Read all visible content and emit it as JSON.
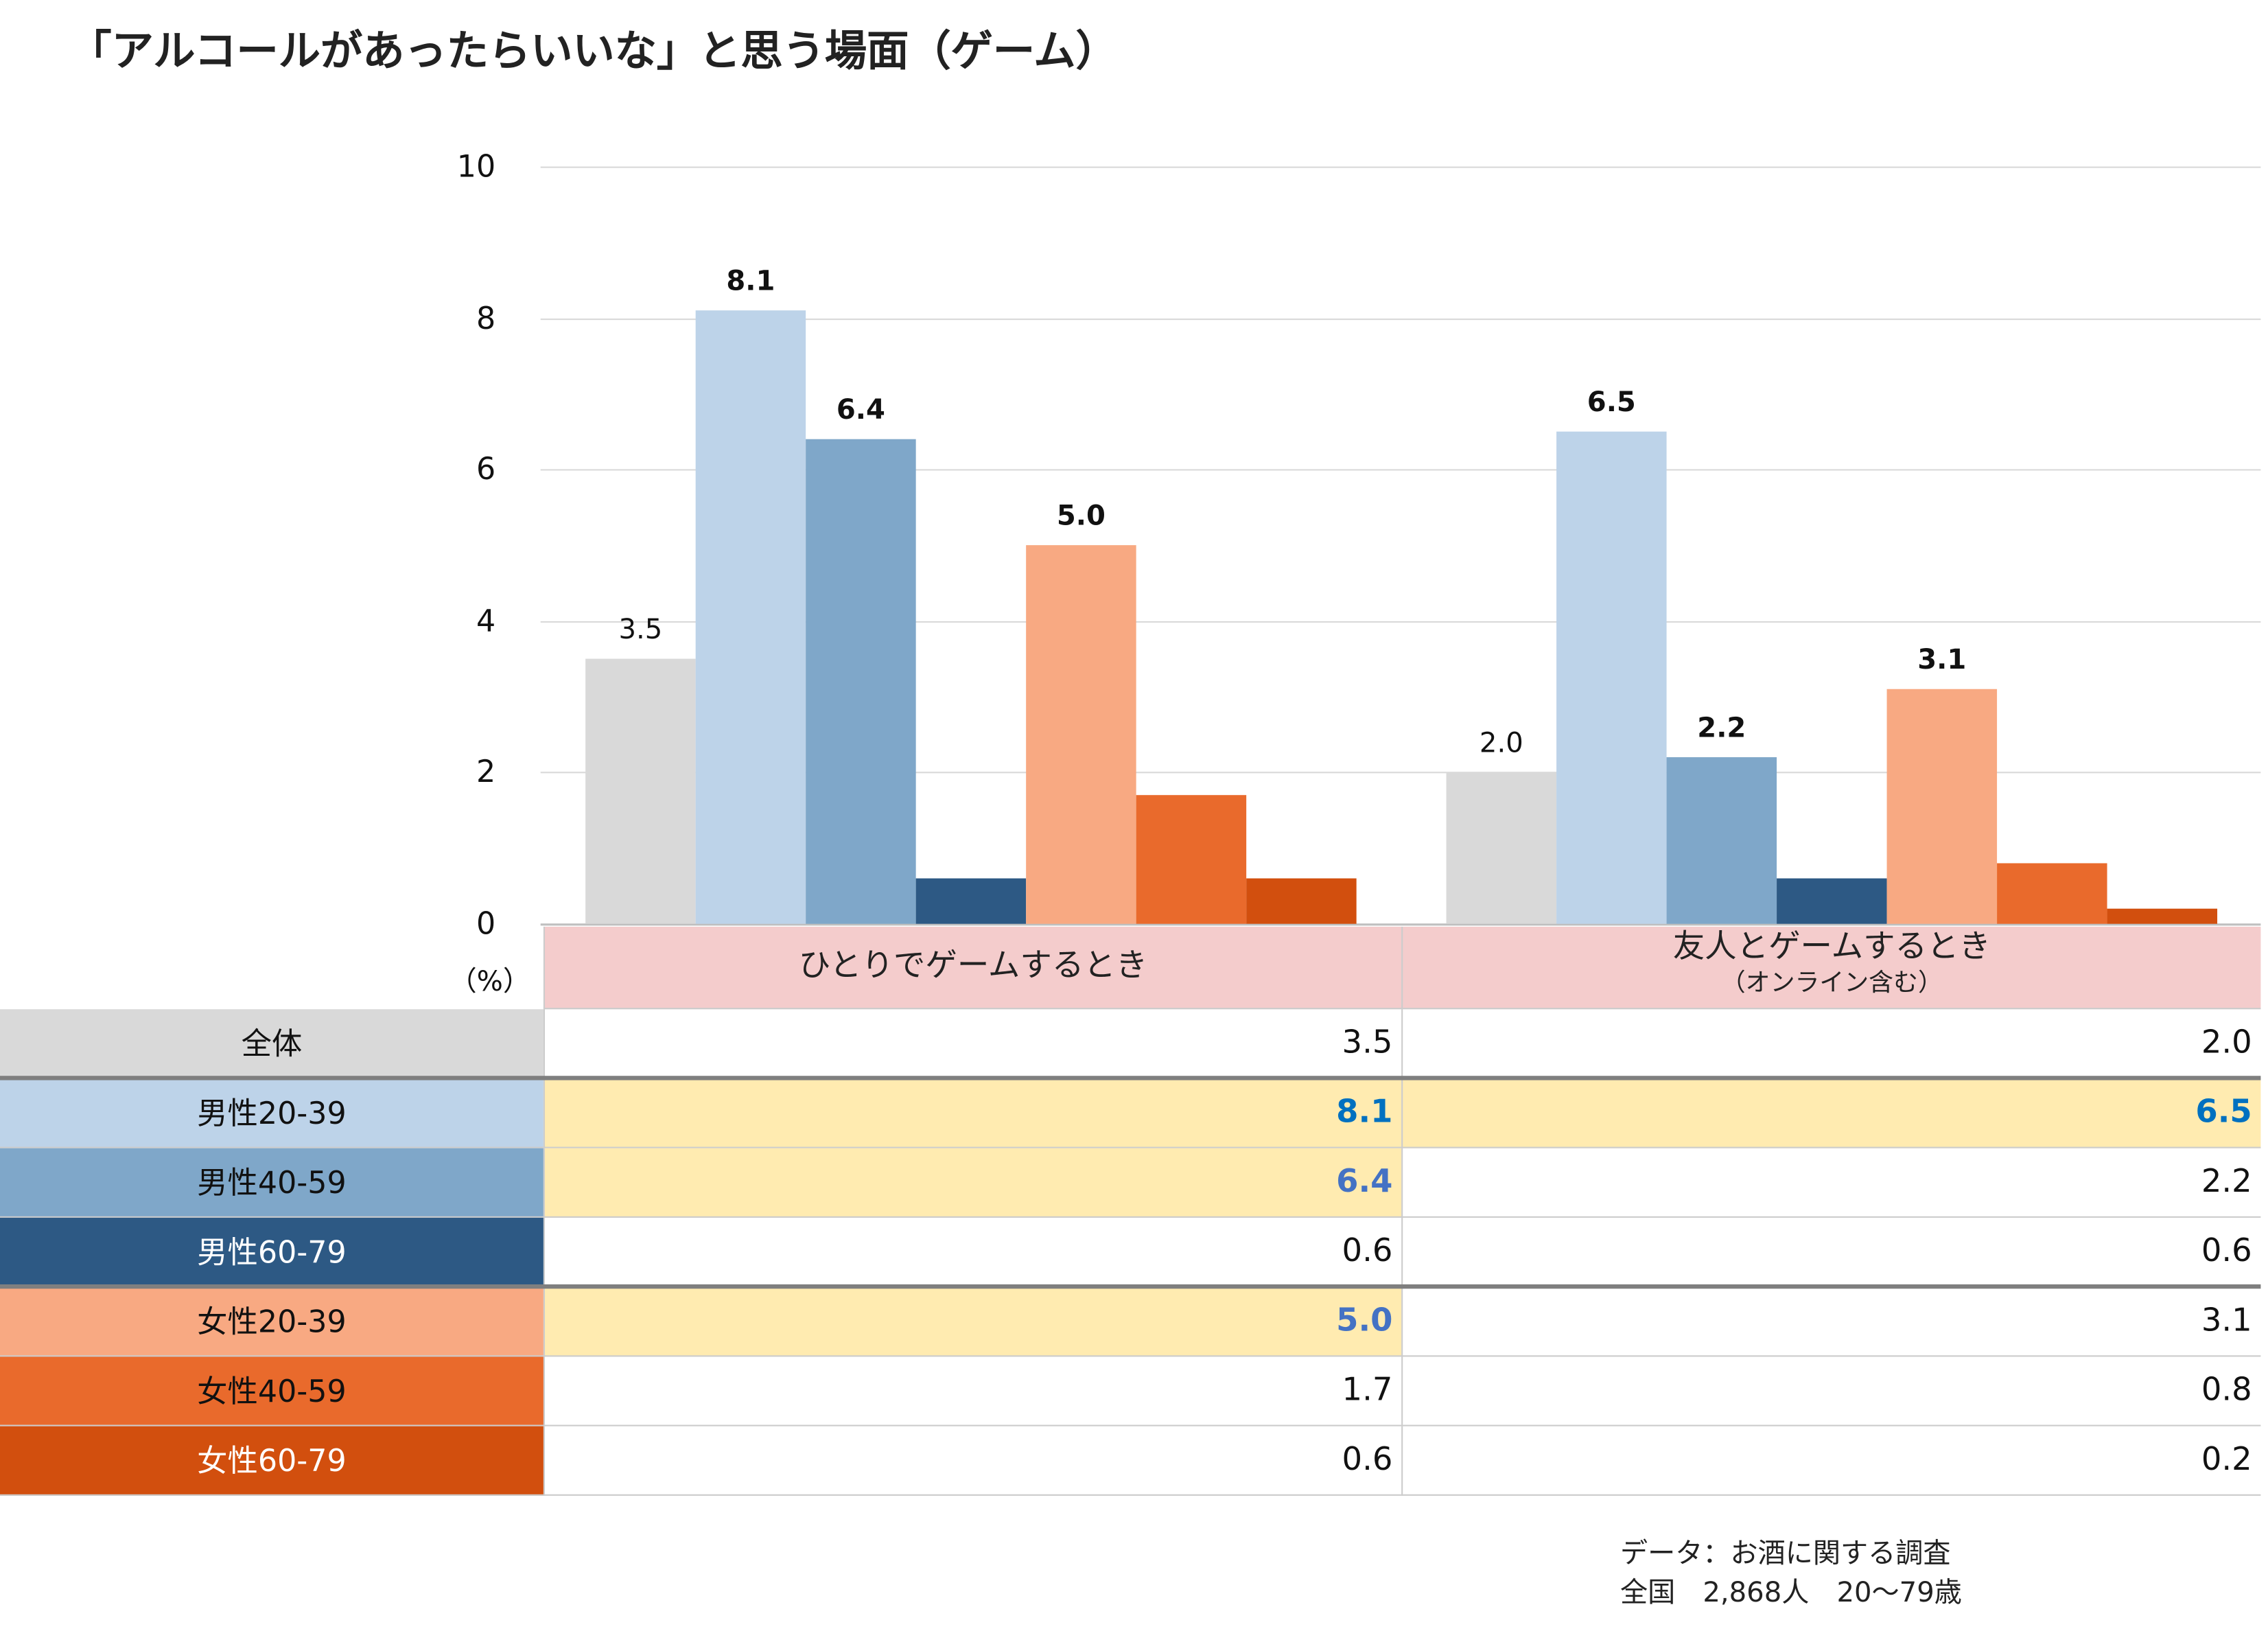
{
  "title": "「アルコールがあったらいいな」と思う場面（ゲーム）",
  "chart_data": {
    "type": "bar",
    "title": "「アルコールがあったらいいな」と思う場面（ゲーム）",
    "ylabel": "（%）",
    "ylim": [
      0,
      10
    ],
    "yticks": [
      "0",
      "2",
      "4",
      "6",
      "8",
      "10"
    ],
    "grid": true,
    "categories": [
      "ひとりでゲームするとき",
      "友人とゲームするとき"
    ],
    "category_sublabels": [
      "",
      "（オンライン含む）"
    ],
    "series": [
      {
        "name": "全体",
        "color": "#d9d9d9",
        "values": [
          3.5,
          2.0
        ],
        "value_labels": [
          "3.5",
          "2.0"
        ],
        "label_bold": false
      },
      {
        "name": "男性20-39",
        "color": "#bdd3e9",
        "values": [
          8.1,
          6.5
        ],
        "value_labels": [
          "8.1",
          "6.5"
        ],
        "label_bold": true
      },
      {
        "name": "男性40-59",
        "color": "#7fa7c9",
        "values": [
          6.4,
          2.2
        ],
        "value_labels": [
          "6.4",
          "2.2"
        ],
        "label_bold": true
      },
      {
        "name": "男性60-79",
        "color": "#2d5984",
        "values": [
          0.6,
          0.6
        ],
        "value_labels": [
          "",
          ""
        ],
        "label_bold": false
      },
      {
        "name": "女性20-39",
        "color": "#f8a982",
        "values": [
          5.0,
          3.1
        ],
        "value_labels": [
          "5.0",
          "3.1"
        ],
        "label_bold": true
      },
      {
        "name": "女性40-59",
        "color": "#e96a2c",
        "values": [
          1.7,
          0.8
        ],
        "value_labels": [
          "",
          ""
        ],
        "label_bold": false
      },
      {
        "name": "女性60-79",
        "color": "#d24f0e",
        "values": [
          0.6,
          0.2
        ],
        "value_labels": [
          "",
          ""
        ],
        "label_bold": false
      }
    ]
  },
  "table": {
    "rows": [
      {
        "label": "全体",
        "bg": "#d9d9d9",
        "fg": "#111111",
        "cells": [
          {
            "v": "3.5",
            "hl": false
          },
          {
            "v": "2.0",
            "hl": false
          }
        ]
      },
      {
        "label": "男性20-39",
        "bg": "#bdd3e9",
        "fg": "#111111",
        "cells": [
          {
            "v": "8.1",
            "hl": true,
            "color": "#0070c0"
          },
          {
            "v": "6.5",
            "hl": true,
            "color": "#0070c0"
          }
        ]
      },
      {
        "label": "男性40-59",
        "bg": "#7fa7c9",
        "fg": "#111111",
        "cells": [
          {
            "v": "6.4",
            "hl": true,
            "color": "#4472c4"
          },
          {
            "v": "2.2",
            "hl": false
          }
        ]
      },
      {
        "label": "男性60-79",
        "bg": "#2d5984",
        "fg": "#ffffff",
        "cells": [
          {
            "v": "0.6",
            "hl": false
          },
          {
            "v": "0.6",
            "hl": false
          }
        ]
      },
      {
        "label": "女性20-39",
        "bg": "#f8a982",
        "fg": "#111111",
        "cells": [
          {
            "v": "5.0",
            "hl": true,
            "color": "#4472c4"
          },
          {
            "v": "3.1",
            "hl": false
          }
        ]
      },
      {
        "label": "女性40-59",
        "bg": "#e96a2c",
        "fg": "#111111",
        "cells": [
          {
            "v": "1.7",
            "hl": false
          },
          {
            "v": "0.8",
            "hl": false
          }
        ]
      },
      {
        "label": "女性60-79",
        "bg": "#d24f0e",
        "fg": "#ffffff",
        "cells": [
          {
            "v": "0.6",
            "hl": false
          },
          {
            "v": "0.2",
            "hl": false
          }
        ]
      }
    ]
  },
  "footer": {
    "line1": "データ：お酒に関する調査",
    "line2": "全国　2,868人　20～79歳"
  }
}
